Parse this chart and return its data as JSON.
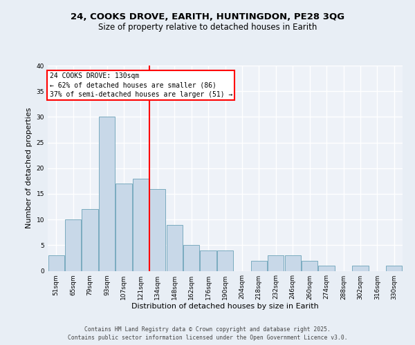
{
  "title1": "24, COOKS DROVE, EARITH, HUNTINGDON, PE28 3QG",
  "title2": "Size of property relative to detached houses in Earith",
  "xlabel": "Distribution of detached houses by size in Earith",
  "ylabel": "Number of detached properties",
  "bins": [
    "51sqm",
    "65sqm",
    "79sqm",
    "93sqm",
    "107sqm",
    "121sqm",
    "134sqm",
    "148sqm",
    "162sqm",
    "176sqm",
    "190sqm",
    "204sqm",
    "218sqm",
    "232sqm",
    "246sqm",
    "260sqm",
    "274sqm",
    "288sqm",
    "302sqm",
    "316sqm",
    "330sqm"
  ],
  "values": [
    3,
    10,
    12,
    30,
    17,
    18,
    16,
    9,
    5,
    4,
    4,
    0,
    2,
    3,
    3,
    2,
    1,
    0,
    1,
    0,
    1
  ],
  "bar_color": "#c8d8e8",
  "bar_edge_color": "#7aabbf",
  "vline_x": 5.5,
  "vline_color": "red",
  "annotation_text": "24 COOKS DROVE: 130sqm\n← 62% of detached houses are smaller (86)\n37% of semi-detached houses are larger (51) →",
  "annotation_box_color": "white",
  "annotation_box_edge": "red",
  "bg_color": "#e8eef5",
  "plot_bg_color": "#eef2f8",
  "grid_color": "white",
  "ylim": [
    0,
    40
  ],
  "yticks": [
    0,
    5,
    10,
    15,
    20,
    25,
    30,
    35,
    40
  ],
  "footer": "Contains HM Land Registry data © Crown copyright and database right 2025.\nContains public sector information licensed under the Open Government Licence v3.0.",
  "title_fontsize": 9.5,
  "subtitle_fontsize": 8.5,
  "tick_fontsize": 6.5,
  "ylabel_fontsize": 8,
  "xlabel_fontsize": 8,
  "footer_fontsize": 5.8,
  "annot_fontsize": 7.0
}
